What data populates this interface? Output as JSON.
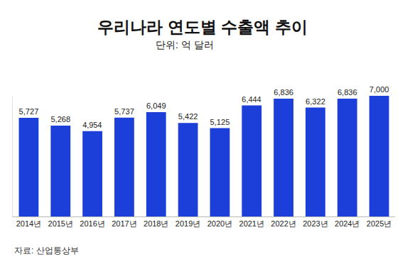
{
  "chart_data": {
    "type": "bar",
    "title": "우리나라 연도별 수출액 추이",
    "subtitle": "단위: 억 달러",
    "source": "자료: 산업통상부",
    "categories": [
      "2014년",
      "2015년",
      "2016년",
      "2017년",
      "2018년",
      "2019년",
      "2020년",
      "2021년",
      "2022년",
      "2023년",
      "2024년",
      "2025년"
    ],
    "values": [
      5727,
      5268,
      4954,
      5737,
      6049,
      5422,
      5125,
      6444,
      6836,
      6322,
      6836,
      7000
    ],
    "value_labels": [
      "5,727",
      "5,268",
      "4,954",
      "5,737",
      "6,049",
      "5,422",
      "5,125",
      "6,444",
      "6,836",
      "6,322",
      "6,836",
      "7,000"
    ],
    "color": "#1b3fd8",
    "ylim": [
      0,
      7000
    ],
    "yticks": [],
    "grid": false,
    "data_labels": true,
    "tick_labels": "x"
  }
}
